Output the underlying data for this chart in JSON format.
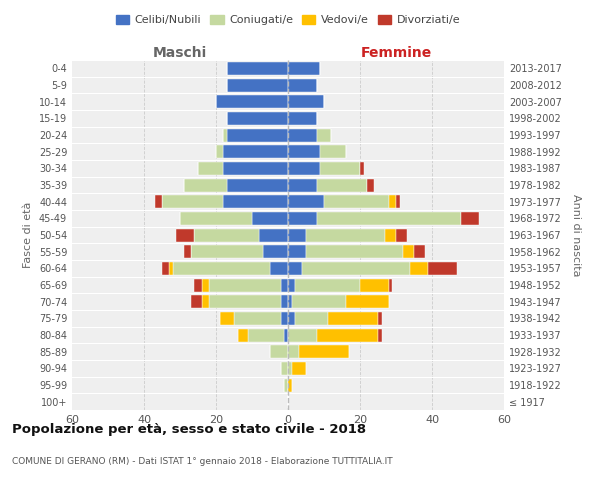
{
  "age_groups": [
    "100+",
    "95-99",
    "90-94",
    "85-89",
    "80-84",
    "75-79",
    "70-74",
    "65-69",
    "60-64",
    "55-59",
    "50-54",
    "45-49",
    "40-44",
    "35-39",
    "30-34",
    "25-29",
    "20-24",
    "15-19",
    "10-14",
    "5-9",
    "0-4"
  ],
  "birth_years": [
    "≤ 1917",
    "1918-1922",
    "1923-1927",
    "1928-1932",
    "1933-1937",
    "1938-1942",
    "1943-1947",
    "1948-1952",
    "1953-1957",
    "1958-1962",
    "1963-1967",
    "1968-1972",
    "1973-1977",
    "1978-1982",
    "1983-1987",
    "1988-1992",
    "1993-1997",
    "1998-2002",
    "2003-2007",
    "2008-2012",
    "2013-2017"
  ],
  "maschi": {
    "celibi": [
      0,
      0,
      0,
      0,
      1,
      2,
      2,
      2,
      5,
      7,
      8,
      10,
      18,
      17,
      18,
      18,
      17,
      17,
      20,
      17,
      17
    ],
    "coniugati": [
      0,
      1,
      2,
      5,
      10,
      13,
      20,
      20,
      27,
      20,
      18,
      20,
      17,
      12,
      7,
      2,
      1,
      0,
      0,
      0,
      0
    ],
    "vedovi": [
      0,
      0,
      0,
      0,
      3,
      4,
      2,
      2,
      1,
      0,
      0,
      0,
      0,
      0,
      0,
      0,
      0,
      0,
      0,
      0,
      0
    ],
    "divorziati": [
      0,
      0,
      0,
      0,
      0,
      0,
      3,
      2,
      2,
      2,
      5,
      0,
      2,
      0,
      0,
      0,
      0,
      0,
      0,
      0,
      0
    ]
  },
  "femmine": {
    "celibi": [
      0,
      0,
      0,
      0,
      0,
      2,
      1,
      2,
      4,
      5,
      5,
      8,
      10,
      8,
      9,
      9,
      8,
      8,
      10,
      8,
      9
    ],
    "coniugati": [
      0,
      0,
      1,
      3,
      8,
      9,
      15,
      18,
      30,
      27,
      22,
      40,
      18,
      14,
      11,
      7,
      4,
      0,
      0,
      0,
      0
    ],
    "vedovi": [
      0,
      1,
      4,
      14,
      17,
      14,
      12,
      8,
      5,
      3,
      3,
      0,
      2,
      0,
      0,
      0,
      0,
      0,
      0,
      0,
      0
    ],
    "divorziati": [
      0,
      0,
      0,
      0,
      1,
      1,
      0,
      1,
      8,
      3,
      3,
      5,
      1,
      2,
      1,
      0,
      0,
      0,
      0,
      0,
      0
    ]
  },
  "colors": {
    "celibi": "#4472c4",
    "coniugati": "#c5d9a0",
    "vedovi": "#ffc000",
    "divorziati": "#c0392b"
  },
  "title": "Popolazione per età, sesso e stato civile - 2018",
  "subtitle": "COMUNE DI GERANO (RM) - Dati ISTAT 1° gennaio 2018 - Elaborazione TUTTITALIA.IT",
  "xlabel_left": "Maschi",
  "xlabel_right": "Femmine",
  "ylabel_left": "Fasce di età",
  "ylabel_right": "Anni di nascita",
  "xlim": 60,
  "legend_labels": [
    "Celibi/Nubili",
    "Coniugati/e",
    "Vedovi/e",
    "Divorziati/e"
  ],
  "bg_color": "#efefef"
}
